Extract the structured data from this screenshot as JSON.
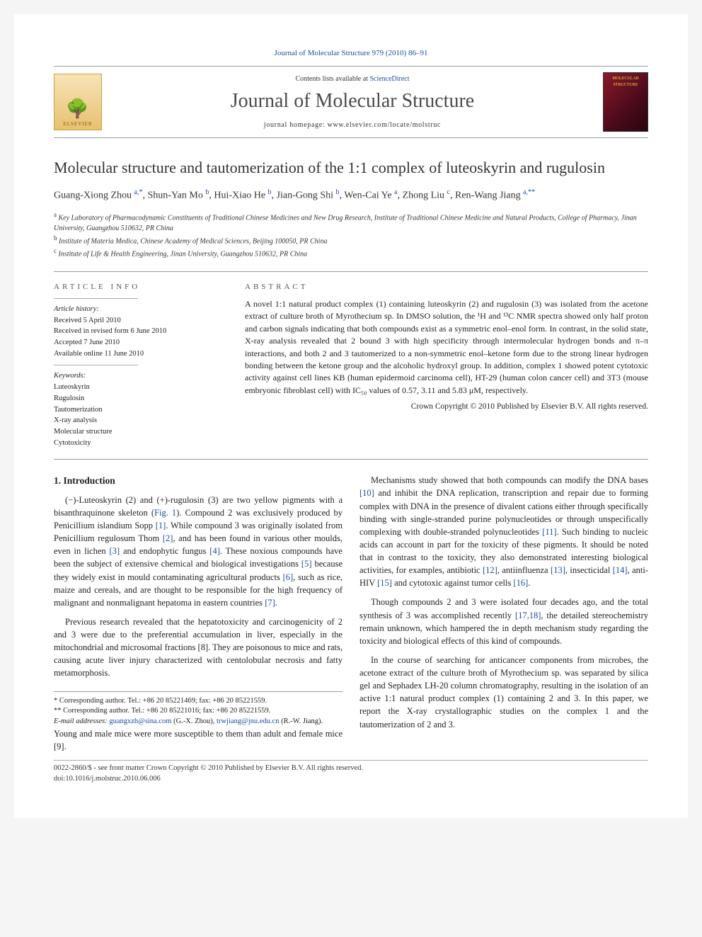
{
  "journal_ref": {
    "text": "Journal of Molecular Structure 979 (2010) 86–91",
    "link_color": "#1a4d9e"
  },
  "header": {
    "contents_prefix": "Contents lists available at ",
    "contents_link": "ScienceDirect",
    "journal_name": "Journal of Molecular Structure",
    "homepage": "journal homepage: www.elsevier.com/locate/molstruc",
    "elsevier_label": "ELSEVIER",
    "cover_label": "MOLECULAR STRUCTURE"
  },
  "article": {
    "title": "Molecular structure and tautomerization of the 1:1 complex of luteoskyrin and rugulosin",
    "authors_html": "Guang-Xiong Zhou <sup>a,*</sup>, Shun-Yan Mo <sup>b</sup>, Hui-Xiao He <sup>b</sup>, Jian-Gong Shi <sup>b</sup>, Wen-Cai Ye <sup>a</sup>, Zhong Liu <sup>c</sup>, Ren-Wang Jiang <sup>a,**</sup>",
    "affiliations": [
      {
        "sup": "a",
        "text": "Key Laboratory of Pharmacodynamic Constituents of Traditional Chinese Medicines and New Drug Research, Institute of Traditional Chinese Medicine and Natural Products, College of Pharmacy, Jinan University, Guangzhou 510632, PR China"
      },
      {
        "sup": "b",
        "text": "Institute of Materia Medica, Chinese Academy of Medical Sciences, Beijing 100050, PR China"
      },
      {
        "sup": "c",
        "text": "Institute of Life & Health Engineering, Jinan University, Guangzhou 510632, PR China"
      }
    ]
  },
  "article_info": {
    "heading": "ARTICLE INFO",
    "history_label": "Article history:",
    "history": [
      "Received 5 April 2010",
      "Received in revised form 6 June 2010",
      "Accepted 7 June 2010",
      "Available online 11 June 2010"
    ],
    "keywords_label": "Keywords:",
    "keywords": [
      "Luteoskyrin",
      "Rugulosin",
      "Tautomerization",
      "X-ray analysis",
      "Molecular structure",
      "Cytotoxicity"
    ]
  },
  "abstract": {
    "heading": "ABSTRACT",
    "text": "A novel 1:1 natural product complex (1) containing luteoskyrin (2) and rugulosin (3) was isolated from the acetone extract of culture broth of Myrothecium sp. In DMSO solution, the ¹H and ¹³C NMR spectra showed only half proton and carbon signals indicating that both compounds exist as a symmetric enol–enol form. In contrast, in the solid state, X-ray analysis revealed that 2 bound 3 with high specificity through intermolecular hydrogen bonds and π–π interactions, and both 2 and 3 tautomerized to a non-symmetric enol–ketone form due to the strong linear hydrogen bonding between the ketone group and the alcoholic hydroxyl group. In addition, complex 1 showed potent cytotoxic activity against cell lines KB (human epidermoid carcinoma cell), HT-29 (human colon cancer cell) and 3T3 (mouse embryonic fibroblast cell) with IC₅₀ values of 0.57, 3.11 and 5.83 μM, respectively.",
    "copyright": "Crown Copyright © 2010 Published by Elsevier B.V. All rights reserved."
  },
  "section1": {
    "heading": "1. Introduction",
    "p1": "(−)-Luteoskyrin (2) and (+)-rugulosin (3) are two yellow pigments with a bisanthraquinone skeleton (Fig. 1). Compound 2 was exclusively produced by Penicillium islandium Sopp [1]. While compound 3 was originally isolated from Penicillium regulosum Thom [2], and has been found in various other moulds, even in lichen [3] and endophytic fungus [4]. These noxious compounds have been the subject of extensive chemical and biological investigations [5] because they widely exist in mould contaminating agricultural products [6], such as rice, maize and cereals, and are thought to be responsible for the high frequency of malignant and nonmalignant hepatoma in eastern countries [7].",
    "p2": "Previous research revealed that the hepatotoxicity and carcinogenicity of 2 and 3 were due to the preferential accumulation in liver, especially in the mitochondrial and microsomal fractions [8]. They are poisonous to mice and rats, causing acute liver injury characterized with centolobular necrosis and fatty metamorphosis.",
    "p3": "Young and male mice were more susceptible to them than adult and female mice [9].",
    "p4": "Mechanisms study showed that both compounds can modify the DNA bases [10] and inhibit the DNA replication, transcription and repair due to forming complex with DNA in the presence of divalent cations either through specifically binding with single-stranded purine polynucleotides or through unspecifically complexing with double-stranded polynucleotides [11]. Such binding to nucleic acids can account in part for the toxicity of these pigments. It should be noted that in contrast to the toxicity, they also demonstrated interesting biological activities, for examples, antibiotic [12], antiinfluenza [13], insecticidal [14], anti-HIV [15] and cytotoxic against tumor cells [16].",
    "p5": "Though compounds 2 and 3 were isolated four decades ago, and the total synthesis of 3 was accomplished recently [17,18], the detailed stereochemistry remain unknown, which hampered the in depth mechanism study regarding the toxicity and biological effects of this kind of compounds.",
    "p6": "In the course of searching for anticancer components from microbes, the acetone extract of the culture broth of Myrothecium sp. was separated by silica gel and Sephadex LH-20 column chromatography, resulting in the isolation of an active 1:1 natural product complex (1) containing 2 and 3. In this paper, we report the X-ray crystallographic studies on the complex 1 and the tautomerization of 2 and 3."
  },
  "footnotes": {
    "f1": "* Corresponding author. Tel.: +86 20 85221469; fax: +86 20 85221559.",
    "f2": "** Corresponding author. Tel.: +86 20 85221016; fax: +86 20 85221559.",
    "emails_label": "E-mail addresses: ",
    "email1": "guangxzh@sina.com",
    "email1_suffix": " (G.-X. Zhou), ",
    "email2": "trwjiang@jnu.edu.cn",
    "email2_suffix": " (R.-W. Jiang)."
  },
  "footer": {
    "line1": "0022-2860/$ - see front matter Crown Copyright © 2010 Published by Elsevier B.V. All rights reserved.",
    "line2": "doi:10.1016/j.molstruc.2010.06.006"
  },
  "colors": {
    "link": "#1a4d9e",
    "rule": "#999999",
    "text": "#222222"
  }
}
